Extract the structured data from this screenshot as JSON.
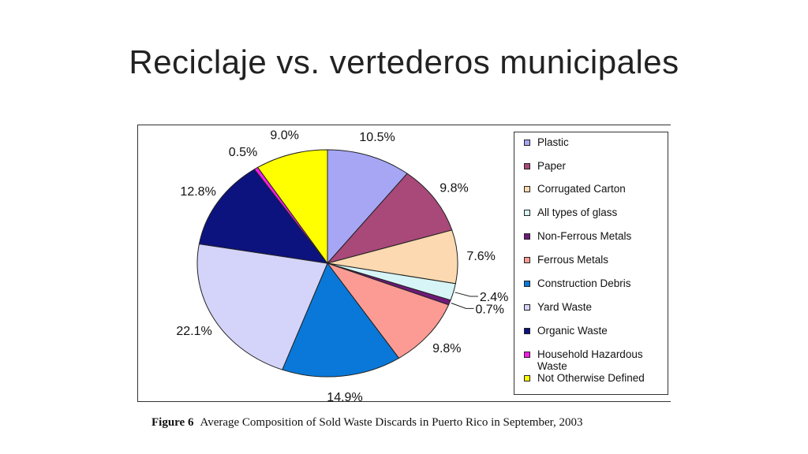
{
  "slide": {
    "title": "Reciclaje vs. vertederos municipales"
  },
  "figure": {
    "number": "Figure 6",
    "caption": "Average Composition of Sold Waste Discards in Puerto Rico in September, 2003"
  },
  "chart_data": {
    "type": "pie",
    "title": "",
    "legend_position": "right",
    "slices": [
      {
        "name": "Plastic",
        "value": 10.5,
        "label": "10.5%",
        "color": "#a6a6f5"
      },
      {
        "name": "Paper",
        "value": 9.8,
        "label": "9.8%",
        "color": "#a8497a"
      },
      {
        "name": "Corrugated Carton",
        "value": 7.6,
        "label": "7.6%",
        "color": "#fcd9b0"
      },
      {
        "name": "All types of glass",
        "value": 2.4,
        "label": "2.4%",
        "color": "#d7f5f7"
      },
      {
        "name": "Non-Ferrous Metals",
        "value": 0.7,
        "label": "0.7%",
        "color": "#6e1a7a"
      },
      {
        "name": "Ferrous Metals",
        "value": 9.8,
        "label": "9.8%",
        "color": "#fb9b94"
      },
      {
        "name": "Construction Debris",
        "value": 14.9,
        "label": "14.9%",
        "color": "#0a78d8"
      },
      {
        "name": "Yard Waste",
        "value": 22.1,
        "label": "22.1%",
        "color": "#d4d4fa"
      },
      {
        "name": "Organic Waste",
        "value": 12.8,
        "label": "12.8%",
        "color": "#0c127e"
      },
      {
        "name": "Household Hazardous Waste",
        "value": 0.5,
        "label": "0.5%",
        "color": "#f21ee8"
      },
      {
        "name": "Not Otherwise Defined",
        "value": 9.0,
        "label": "9.0%",
        "color": "#ffff00"
      }
    ]
  }
}
